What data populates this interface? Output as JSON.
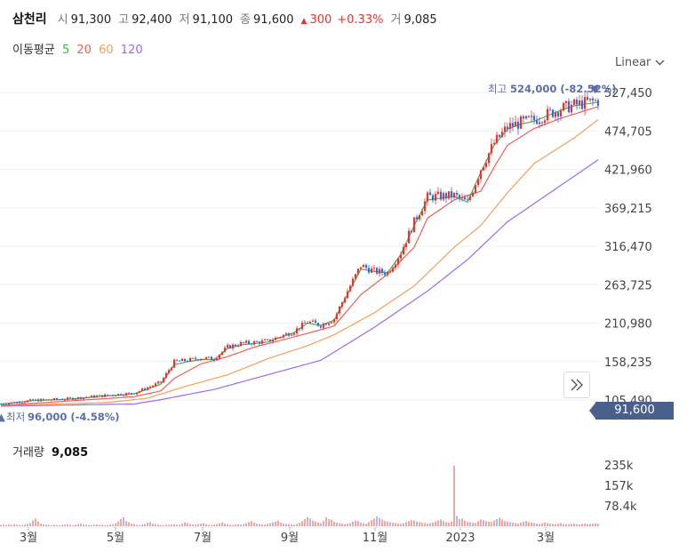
{
  "header": {
    "name": "삼천리",
    "open_label": "시",
    "open": "91,300",
    "high_label": "고",
    "high": "92,400",
    "low_label": "저",
    "low": "91,100",
    "close_label": "종",
    "close": "91,600",
    "change_arrow": "▲",
    "change": "300",
    "change_pct": "+0.33%",
    "volume_label": "거",
    "volume": "9,085"
  },
  "moving_average": {
    "label": "이동평균",
    "periods": [
      {
        "value": "5",
        "color": "#4caf50"
      },
      {
        "value": "20",
        "color": "#f0605a"
      },
      {
        "value": "60",
        "color": "#f5a05a"
      },
      {
        "value": "120",
        "color": "#9b6cf0"
      }
    ]
  },
  "scale_button": "Linear",
  "current_price_tag": "91,600",
  "volume_panel": {
    "label": "거래량",
    "value": "9,085"
  },
  "chart_data": {
    "type": "candlestick",
    "y_ticks": [
      "527,450",
      "474,705",
      "421,960",
      "369,215",
      "316,470",
      "263,725",
      "210,980",
      "158,235",
      "105,490"
    ],
    "x_ticks": [
      "3월",
      "5월",
      "7월",
      "9월",
      "11월",
      "2023",
      "3월"
    ],
    "volume_ticks": [
      "235k",
      "157k",
      "78.4k"
    ],
    "ylim": [
      105490,
      527450
    ],
    "annotation_high": {
      "label": "최고",
      "value": "524,000 (-82.52%)",
      "marker": "▼"
    },
    "annotation_low": {
      "label": "최저",
      "value": "96,000 (-4.58%)",
      "marker": "▲"
    },
    "series": [
      {
        "name": "5",
        "color": "#4caf50"
      },
      {
        "name": "20",
        "color": "#f0605a"
      },
      {
        "name": "60",
        "color": "#f5a05a"
      },
      {
        "name": "120",
        "color": "#9b6cf0"
      }
    ],
    "up_color": "#e8342e",
    "down_color": "#2d6fe0",
    "price_path": [
      [
        0,
        100000
      ],
      [
        12,
        105000
      ],
      [
        25,
        107000
      ],
      [
        40,
        112000
      ],
      [
        50,
        115000
      ],
      [
        60,
        130000
      ],
      [
        65,
        158000
      ],
      [
        70,
        160000
      ],
      [
        75,
        163000
      ],
      [
        80,
        162000
      ],
      [
        85,
        178000
      ],
      [
        90,
        183000
      ],
      [
        100,
        186000
      ],
      [
        110,
        200000
      ],
      [
        115,
        213000
      ],
      [
        120,
        208000
      ],
      [
        125,
        217000
      ],
      [
        130,
        255000
      ],
      [
        135,
        290000
      ],
      [
        140,
        282000
      ],
      [
        145,
        280000
      ],
      [
        150,
        308000
      ],
      [
        155,
        350000
      ],
      [
        160,
        384000
      ],
      [
        170,
        386000
      ],
      [
        175,
        376000
      ],
      [
        180,
        423000
      ],
      [
        185,
        458000
      ],
      [
        190,
        480000
      ],
      [
        195,
        486000
      ],
      [
        200,
        490000
      ],
      [
        210,
        505000
      ],
      [
        215,
        510000
      ],
      [
        220,
        514000
      ],
      [
        224,
        516000
      ]
    ],
    "ma5_path": [
      [
        0,
        100000
      ],
      [
        12,
        104500
      ],
      [
        25,
        106500
      ],
      [
        40,
        111000
      ],
      [
        50,
        114000
      ],
      [
        60,
        127000
      ],
      [
        65,
        154000
      ],
      [
        70,
        158000
      ],
      [
        75,
        161000
      ],
      [
        80,
        161000
      ],
      [
        85,
        176000
      ],
      [
        90,
        181000
      ],
      [
        100,
        185000
      ],
      [
        110,
        198000
      ],
      [
        115,
        211000
      ],
      [
        120,
        208000
      ],
      [
        125,
        215000
      ],
      [
        130,
        250000
      ],
      [
        135,
        285000
      ],
      [
        140,
        282000
      ],
      [
        145,
        280000
      ],
      [
        150,
        305000
      ],
      [
        155,
        345000
      ],
      [
        160,
        380000
      ],
      [
        170,
        385000
      ],
      [
        175,
        377000
      ],
      [
        180,
        418000
      ],
      [
        185,
        455000
      ],
      [
        190,
        477000
      ],
      [
        195,
        484000
      ],
      [
        200,
        488000
      ],
      [
        210,
        503000
      ],
      [
        215,
        509000
      ],
      [
        220,
        512000
      ],
      [
        224,
        514000
      ]
    ],
    "ma20_path": [
      [
        0,
        98000
      ],
      [
        25,
        104000
      ],
      [
        50,
        110000
      ],
      [
        60,
        118000
      ],
      [
        65,
        135000
      ],
      [
        75,
        155000
      ],
      [
        85,
        165000
      ],
      [
        95,
        178000
      ],
      [
        110,
        192000
      ],
      [
        125,
        207000
      ],
      [
        135,
        250000
      ],
      [
        145,
        278000
      ],
      [
        155,
        315000
      ],
      [
        160,
        355000
      ],
      [
        170,
        380000
      ],
      [
        180,
        392000
      ],
      [
        185,
        425000
      ],
      [
        190,
        455000
      ],
      [
        200,
        478000
      ],
      [
        210,
        492000
      ],
      [
        224,
        508000
      ]
    ],
    "ma60_path": [
      [
        0,
        98000
      ],
      [
        40,
        102000
      ],
      [
        55,
        108000
      ],
      [
        70,
        125000
      ],
      [
        85,
        140000
      ],
      [
        100,
        162000
      ],
      [
        115,
        180000
      ],
      [
        125,
        195000
      ],
      [
        140,
        225000
      ],
      [
        155,
        262000
      ],
      [
        170,
        315000
      ],
      [
        180,
        345000
      ],
      [
        190,
        390000
      ],
      [
        200,
        430000
      ],
      [
        215,
        465000
      ],
      [
        224,
        490000
      ]
    ],
    "ma120_path": [
      [
        0,
        97000
      ],
      [
        50,
        100000
      ],
      [
        60,
        106000
      ],
      [
        80,
        120000
      ],
      [
        100,
        140000
      ],
      [
        120,
        160000
      ],
      [
        140,
        205000
      ],
      [
        160,
        255000
      ],
      [
        175,
        298000
      ],
      [
        190,
        350000
      ],
      [
        210,
        400000
      ],
      [
        224,
        435000
      ]
    ],
    "volume_k": [
      5,
      6,
      4,
      7,
      5,
      8,
      6,
      5,
      4,
      6,
      9,
      12,
      22,
      30,
      18,
      10,
      7,
      6,
      5,
      4,
      6,
      5,
      4,
      5,
      6,
      7,
      5,
      4,
      6,
      8,
      10,
      7,
      6,
      5,
      4,
      6,
      7,
      5,
      6,
      4,
      5,
      6,
      8,
      12,
      18,
      28,
      35,
      20,
      15,
      10,
      8,
      6,
      5,
      7,
      9,
      14,
      16,
      10,
      8,
      6,
      5,
      4,
      6,
      5,
      7,
      8,
      6,
      5,
      10,
      15,
      12,
      9,
      7,
      6,
      8,
      10,
      12,
      8,
      6,
      5,
      7,
      9,
      12,
      15,
      10,
      8,
      6,
      5,
      7,
      8,
      6,
      9,
      12,
      16,
      20,
      14,
      10,
      8,
      7,
      6,
      10,
      12,
      15,
      18,
      22,
      14,
      10,
      9,
      8,
      7,
      6,
      9,
      14,
      20,
      28,
      35,
      30,
      22,
      18,
      14,
      12,
      20,
      35,
      28,
      25,
      18,
      14,
      12,
      10,
      8,
      10,
      12,
      18,
      22,
      20,
      14,
      12,
      10,
      16,
      24,
      30,
      38,
      32,
      26,
      20,
      18,
      16,
      14,
      12,
      10,
      9,
      12,
      16,
      20,
      24,
      22,
      18,
      16,
      14,
      12,
      10,
      12,
      14,
      18,
      22,
      26,
      20,
      16,
      14,
      18,
      235,
      40,
      28,
      30,
      22,
      18,
      16,
      14,
      12,
      20,
      26,
      24,
      20,
      18,
      16,
      22,
      28,
      32,
      26,
      20,
      18,
      16,
      14,
      12,
      10,
      14,
      18,
      20,
      16,
      14,
      12,
      10,
      9,
      11,
      14,
      12,
      10,
      9,
      8,
      10,
      12,
      9,
      8,
      7,
      9,
      10,
      8,
      7,
      9,
      10,
      8,
      9,
      10,
      11,
      9
    ]
  }
}
